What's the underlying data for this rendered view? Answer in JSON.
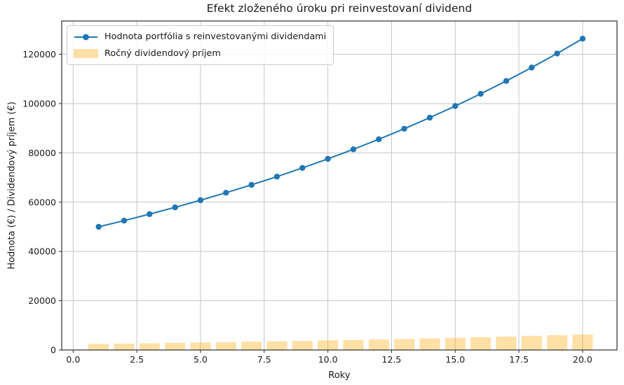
{
  "chart_data": {
    "type": "line+bar",
    "title": "Efekt zloženého úroku pri reinvestovaní dividend",
    "xlabel": "Roky",
    "ylabel": "Hodnota (€) / Dividendový príjem (€)",
    "x": [
      1,
      2,
      3,
      4,
      5,
      6,
      7,
      8,
      9,
      10,
      11,
      12,
      13,
      14,
      15,
      16,
      17,
      18,
      19,
      20
    ],
    "series": [
      {
        "name": "Hodnota portfólia s reinvestovanými dividendami",
        "type": "line",
        "values": [
          50000,
          52500,
          55125,
          57881,
          60775,
          63814,
          67005,
          70355,
          73873,
          77566,
          81445,
          85517,
          89793,
          94282,
          98997,
          103946,
          109144,
          114601,
          120331,
          126348
        ]
      },
      {
        "name": "Ročný dividendový príjem",
        "type": "bar",
        "values": [
          2500,
          2625,
          2756,
          2894,
          3039,
          3191,
          3350,
          3518,
          3694,
          3878,
          4072,
          4276,
          4490,
          4714,
          4950,
          5197,
          5457,
          5730,
          6017,
          6317
        ]
      }
    ],
    "bar_width": 0.8,
    "xlim": [
      -0.45,
      21.35
    ],
    "ylim": [
      0,
      133500
    ],
    "xticks": {
      "values": [
        0,
        2.5,
        5,
        7.5,
        10,
        12.5,
        15,
        17.5,
        20
      ],
      "labels": [
        "0.0",
        "2.5",
        "5.0",
        "7.5",
        "10.0",
        "12.5",
        "15.0",
        "17.5",
        "20.0"
      ]
    },
    "yticks": {
      "values": [
        0,
        20000,
        40000,
        60000,
        80000,
        100000,
        120000
      ],
      "labels": [
        "0",
        "20000",
        "40000",
        "60000",
        "80000",
        "100000",
        "120000"
      ]
    },
    "grid": true,
    "legend_position": "upper left",
    "colors": {
      "line": "#1f77b4",
      "marker": "#1f77b4",
      "bar_fill_rgba": "rgba(255,165,0,0.35)",
      "bar_legend": "#ffdfa6",
      "grid": "#c6c6c6",
      "spine": "#2e2e2e",
      "text": "#1a1a1a"
    }
  }
}
